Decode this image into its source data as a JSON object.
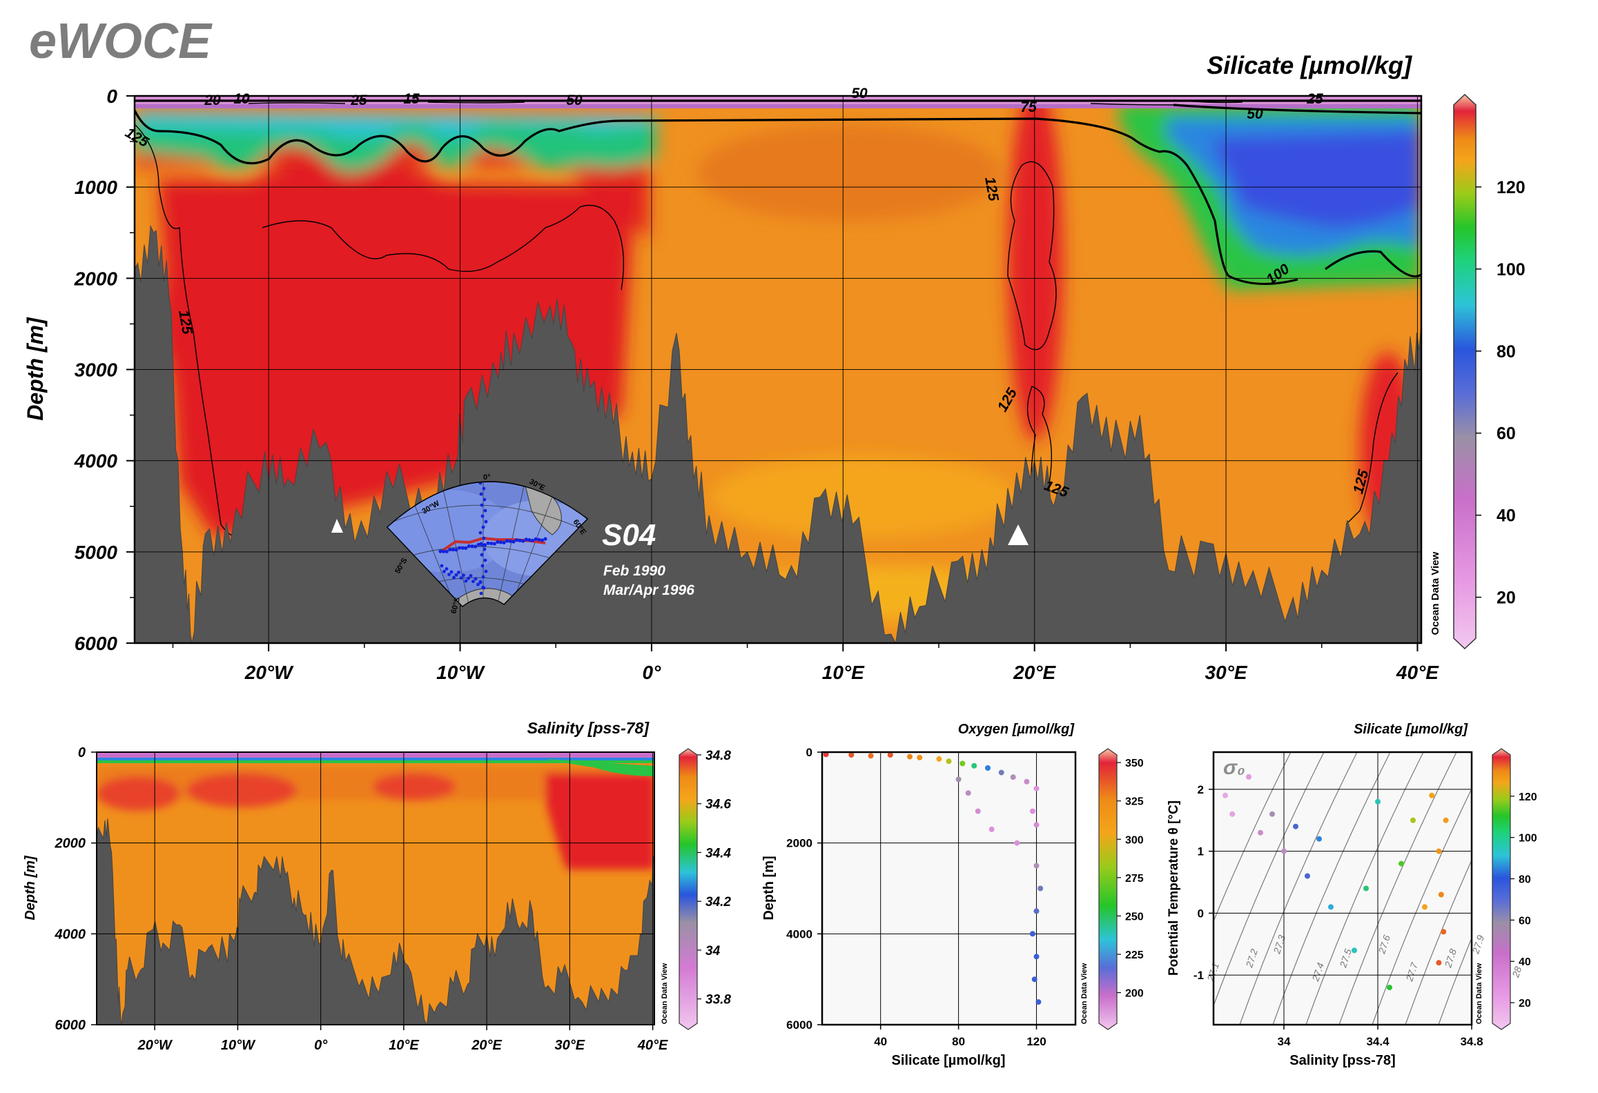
{
  "header": {
    "logo": "eWOCE",
    "section": "S04",
    "dates": [
      "Feb 1990",
      "Mar/Apr 1996"
    ]
  },
  "credits": {
    "odv": "Ocean Data View"
  },
  "chart_data": [
    {
      "id": "main_section",
      "type": "heatmap",
      "title": "Silicate [µmol/kg]",
      "xlabel": "",
      "ylabel": "Depth [m]",
      "xlim": [
        -27,
        40.2
      ],
      "ylim": [
        6000,
        0
      ],
      "x_ticks": [
        -20,
        -10,
        0,
        10,
        20,
        30,
        40
      ],
      "x_tick_labels": [
        "20°W",
        "10°W",
        "0°",
        "10°E",
        "20°E",
        "30°E",
        "40°E"
      ],
      "y_ticks": [
        0,
        1000,
        2000,
        3000,
        4000,
        5000,
        6000
      ],
      "y_tick_labels": [
        "0",
        "1000",
        "2000",
        "3000",
        "4000",
        "5000",
        "6000"
      ],
      "colorbar": {
        "range": [
          10,
          140
        ],
        "ticks": [
          20,
          40,
          60,
          80,
          100,
          120
        ],
        "tick_labels": [
          "20",
          "40",
          "60",
          "80",
          "100",
          "120"
        ]
      },
      "contour_labels": [
        "20",
        "10",
        "25",
        "15",
        "50",
        "50",
        "75",
        "50",
        "25",
        "125",
        "125",
        "125",
        "125",
        "125",
        "125",
        "100"
      ],
      "regions": [
        {
          "name": "surface layer",
          "x": [
            -27,
            40.2
          ],
          "depth": [
            0,
            150
          ],
          "value": 20
        },
        {
          "name": "upper water west",
          "x": [
            -27,
            0
          ],
          "depth": [
            150,
            900
          ],
          "value": 95
        },
        {
          "name": "deep west",
          "x": [
            -27,
            -3
          ],
          "depth": [
            1000,
            4800
          ],
          "value": 130
        },
        {
          "name": "central",
          "x": [
            0,
            18
          ],
          "depth": [
            300,
            5500
          ],
          "value": 118
        },
        {
          "name": "core 20E",
          "x": [
            19,
            21.5
          ],
          "depth": [
            700,
            4600
          ],
          "value": 127
        },
        {
          "name": "east upper",
          "x": [
            28,
            40.2
          ],
          "depth": [
            200,
            2100
          ],
          "value": 75
        },
        {
          "name": "east deep",
          "x": [
            26,
            40
          ],
          "depth": [
            2200,
            5400
          ],
          "value": 121
        }
      ],
      "bathymetry_depth": [
        {
          "x": -27,
          "depth": 1900
        },
        {
          "x": -26,
          "depth": 1500
        },
        {
          "x": -25.2,
          "depth": 2200
        },
        {
          "x": -24.5,
          "depth": 5000
        },
        {
          "x": -24,
          "depth": 6000
        },
        {
          "x": -23.3,
          "depth": 4800
        },
        {
          "x": -22,
          "depth": 4900
        },
        {
          "x": -20.2,
          "depth": 3900
        },
        {
          "x": -19,
          "depth": 4200
        },
        {
          "x": -17,
          "depth": 3800
        },
        {
          "x": -15.5,
          "depth": 4900
        },
        {
          "x": -13.5,
          "depth": 4300
        },
        {
          "x": -11.5,
          "depth": 4400
        },
        {
          "x": -10.2,
          "depth": 4000
        },
        {
          "x": -9.7,
          "depth": 3300
        },
        {
          "x": -8,
          "depth": 3100
        },
        {
          "x": -7.2,
          "depth": 2600
        },
        {
          "x": -5.3,
          "depth": 2300
        },
        {
          "x": -4.2,
          "depth": 2700
        },
        {
          "x": -3.2,
          "depth": 3200
        },
        {
          "x": -2,
          "depth": 3600
        },
        {
          "x": -1,
          "depth": 3900
        },
        {
          "x": 0,
          "depth": 4200
        },
        {
          "x": 1.3,
          "depth": 2600
        },
        {
          "x": 2.2,
          "depth": 4200
        },
        {
          "x": 3,
          "depth": 4600
        },
        {
          "x": 5,
          "depth": 5000
        },
        {
          "x": 7,
          "depth": 5300
        },
        {
          "x": 8.8,
          "depth": 4400
        },
        {
          "x": 10.5,
          "depth": 4700
        },
        {
          "x": 12.5,
          "depth": 5900
        },
        {
          "x": 14,
          "depth": 5600
        },
        {
          "x": 16,
          "depth": 5100
        },
        {
          "x": 17.5,
          "depth": 5200
        },
        {
          "x": 18.6,
          "depth": 4300
        },
        {
          "x": 20,
          "depth": 4000
        },
        {
          "x": 21,
          "depth": 4500
        },
        {
          "x": 22.5,
          "depth": 3300
        },
        {
          "x": 24,
          "depth": 3900
        },
        {
          "x": 25.5,
          "depth": 3500
        },
        {
          "x": 27,
          "depth": 5200
        },
        {
          "x": 29,
          "depth": 4900
        },
        {
          "x": 31,
          "depth": 5400
        },
        {
          "x": 33.5,
          "depth": 5500
        },
        {
          "x": 35,
          "depth": 5200
        },
        {
          "x": 37,
          "depth": 4800
        },
        {
          "x": 38.5,
          "depth": 4000
        },
        {
          "x": 39.5,
          "depth": 3000
        },
        {
          "x": 40.2,
          "depth": 2500
        }
      ]
    },
    {
      "id": "salinity_section",
      "type": "heatmap",
      "title": "Salinity [pss-78]",
      "xlabel": "",
      "ylabel": "Depth [m]",
      "xlim": [
        -27,
        40.2
      ],
      "ylim": [
        6000,
        0
      ],
      "x_ticks": [
        -20,
        -10,
        0,
        10,
        20,
        30,
        40
      ],
      "x_tick_labels": [
        "20°W",
        "10°W",
        "0°",
        "10°E",
        "20°E",
        "30°E",
        "40°E"
      ],
      "y_ticks": [
        0,
        2000,
        4000,
        6000
      ],
      "y_tick_labels": [
        "0",
        "2000",
        "4000",
        "6000"
      ],
      "colorbar": {
        "range": [
          33.7,
          34.8
        ],
        "ticks": [
          33.8,
          34.0,
          34.2,
          34.4,
          34.6,
          34.8
        ],
        "tick_labels": [
          "33.8",
          "34",
          "34.2",
          "34.4",
          "34.6",
          "34.8"
        ]
      },
      "regions": [
        {
          "name": "surface",
          "x": [
            -27,
            40.2
          ],
          "depth": [
            0,
            100
          ],
          "value": 33.9
        },
        {
          "name": "upper west",
          "x": [
            -27,
            25
          ],
          "depth": [
            200,
            1300
          ],
          "value": 34.7
        },
        {
          "name": "deep",
          "x": [
            -27,
            40.2
          ],
          "depth": [
            1300,
            6000
          ],
          "value": 34.66
        },
        {
          "name": "east upper",
          "x": [
            27,
            40.2
          ],
          "depth": [
            400,
            2600
          ],
          "value": 34.73
        }
      ]
    },
    {
      "id": "oxygen_scatter",
      "type": "scatter",
      "title": "Oxygen [µmol/kg]",
      "xlabel": "Silicate [µmol/kg]",
      "ylabel": "Depth [m]",
      "xlim": [
        10,
        140
      ],
      "ylim": [
        6000,
        0
      ],
      "x_ticks": [
        40,
        80,
        120
      ],
      "y_ticks": [
        0,
        2000,
        4000,
        6000
      ],
      "colorbar": {
        "range": [
          180,
          355
        ],
        "ticks": [
          200,
          225,
          250,
          275,
          300,
          325,
          350
        ],
        "tick_labels": [
          "200",
          "225",
          "250",
          "275",
          "300",
          "325",
          "350"
        ]
      },
      "points": [
        {
          "x": 12,
          "y": 50,
          "c": 350
        },
        {
          "x": 25,
          "y": 60,
          "c": 345
        },
        {
          "x": 35,
          "y": 80,
          "c": 340
        },
        {
          "x": 45,
          "y": 60,
          "c": 345
        },
        {
          "x": 55,
          "y": 100,
          "c": 335
        },
        {
          "x": 60,
          "y": 120,
          "c": 330
        },
        {
          "x": 70,
          "y": 150,
          "c": 320
        },
        {
          "x": 75,
          "y": 200,
          "c": 310
        },
        {
          "x": 82,
          "y": 250,
          "c": 300
        },
        {
          "x": 88,
          "y": 300,
          "c": 280
        },
        {
          "x": 95,
          "y": 350,
          "c": 260
        },
        {
          "x": 102,
          "y": 450,
          "c": 240
        },
        {
          "x": 108,
          "y": 550,
          "c": 225
        },
        {
          "x": 115,
          "y": 650,
          "c": 215
        },
        {
          "x": 120,
          "y": 800,
          "c": 205
        },
        {
          "x": 80,
          "y": 600,
          "c": 230
        },
        {
          "x": 85,
          "y": 900,
          "c": 220
        },
        {
          "x": 90,
          "y": 1300,
          "c": 210
        },
        {
          "x": 97,
          "y": 1700,
          "c": 205
        },
        {
          "x": 110,
          "y": 2000,
          "c": 205
        },
        {
          "x": 118,
          "y": 1300,
          "c": 205
        },
        {
          "x": 120,
          "y": 1600,
          "c": 210
        },
        {
          "x": 120,
          "y": 2500,
          "c": 225
        },
        {
          "x": 122,
          "y": 3000,
          "c": 240
        },
        {
          "x": 120,
          "y": 3500,
          "c": 245
        },
        {
          "x": 118,
          "y": 4000,
          "c": 250
        },
        {
          "x": 120,
          "y": 4500,
          "c": 250
        },
        {
          "x": 119,
          "y": 5000,
          "c": 250
        },
        {
          "x": 121,
          "y": 5500,
          "c": 250
        }
      ]
    },
    {
      "id": "ts_scatter",
      "type": "scatter",
      "title": "Silicate [µmol/kg]",
      "xlabel": "Salinity [pss-78]",
      "ylabel": "Potential Temperature θ [°C]",
      "xlim": [
        33.7,
        34.8
      ],
      "ylim": [
        -1.8,
        2.6
      ],
      "x_ticks": [
        34.0,
        34.4,
        34.8
      ],
      "x_tick_labels": [
        "34",
        "34.4",
        "34.8"
      ],
      "y_ticks": [
        -1,
        0,
        1,
        2
      ],
      "y_tick_labels": [
        "-1",
        "0",
        "1",
        "2"
      ],
      "density_symbol": "σ₀",
      "isopycnals": [
        "27.1",
        "27.2",
        "27.3",
        "27.4",
        "27.5",
        "27.6",
        "27.7",
        "27.8",
        "27.9",
        "28"
      ],
      "colorbar": {
        "range": [
          10,
          140
        ],
        "ticks": [
          20,
          40,
          60,
          80,
          100,
          120
        ],
        "tick_labels": [
          "20",
          "40",
          "60",
          "80",
          "100",
          "120"
        ]
      },
      "points": [
        {
          "x": 33.75,
          "y": 1.9,
          "c": 20
        },
        {
          "x": 33.78,
          "y": 1.6,
          "c": 22
        },
        {
          "x": 33.85,
          "y": 2.2,
          "c": 25
        },
        {
          "x": 33.9,
          "y": 1.3,
          "c": 35
        },
        {
          "x": 33.95,
          "y": 1.6,
          "c": 45
        },
        {
          "x": 34.0,
          "y": 1.0,
          "c": 40
        },
        {
          "x": 34.05,
          "y": 1.4,
          "c": 60
        },
        {
          "x": 34.1,
          "y": 0.6,
          "c": 60
        },
        {
          "x": 34.15,
          "y": 1.2,
          "c": 70
        },
        {
          "x": 34.2,
          "y": 0.1,
          "c": 75
        },
        {
          "x": 34.3,
          "y": -0.6,
          "c": 80
        },
        {
          "x": 34.35,
          "y": 0.4,
          "c": 85
        },
        {
          "x": 34.4,
          "y": 1.8,
          "c": 80
        },
        {
          "x": 34.45,
          "y": -1.2,
          "c": 90
        },
        {
          "x": 34.5,
          "y": 0.8,
          "c": 95
        },
        {
          "x": 34.55,
          "y": 1.5,
          "c": 105
        },
        {
          "x": 34.6,
          "y": 0.1,
          "c": 115
        },
        {
          "x": 34.63,
          "y": 1.9,
          "c": 115
        },
        {
          "x": 34.66,
          "y": 1.0,
          "c": 120
        },
        {
          "x": 34.67,
          "y": 0.3,
          "c": 125
        },
        {
          "x": 34.68,
          "y": -0.3,
          "c": 130
        },
        {
          "x": 34.66,
          "y": -0.8,
          "c": 132
        },
        {
          "x": 34.69,
          "y": 1.5,
          "c": 118
        }
      ]
    }
  ]
}
